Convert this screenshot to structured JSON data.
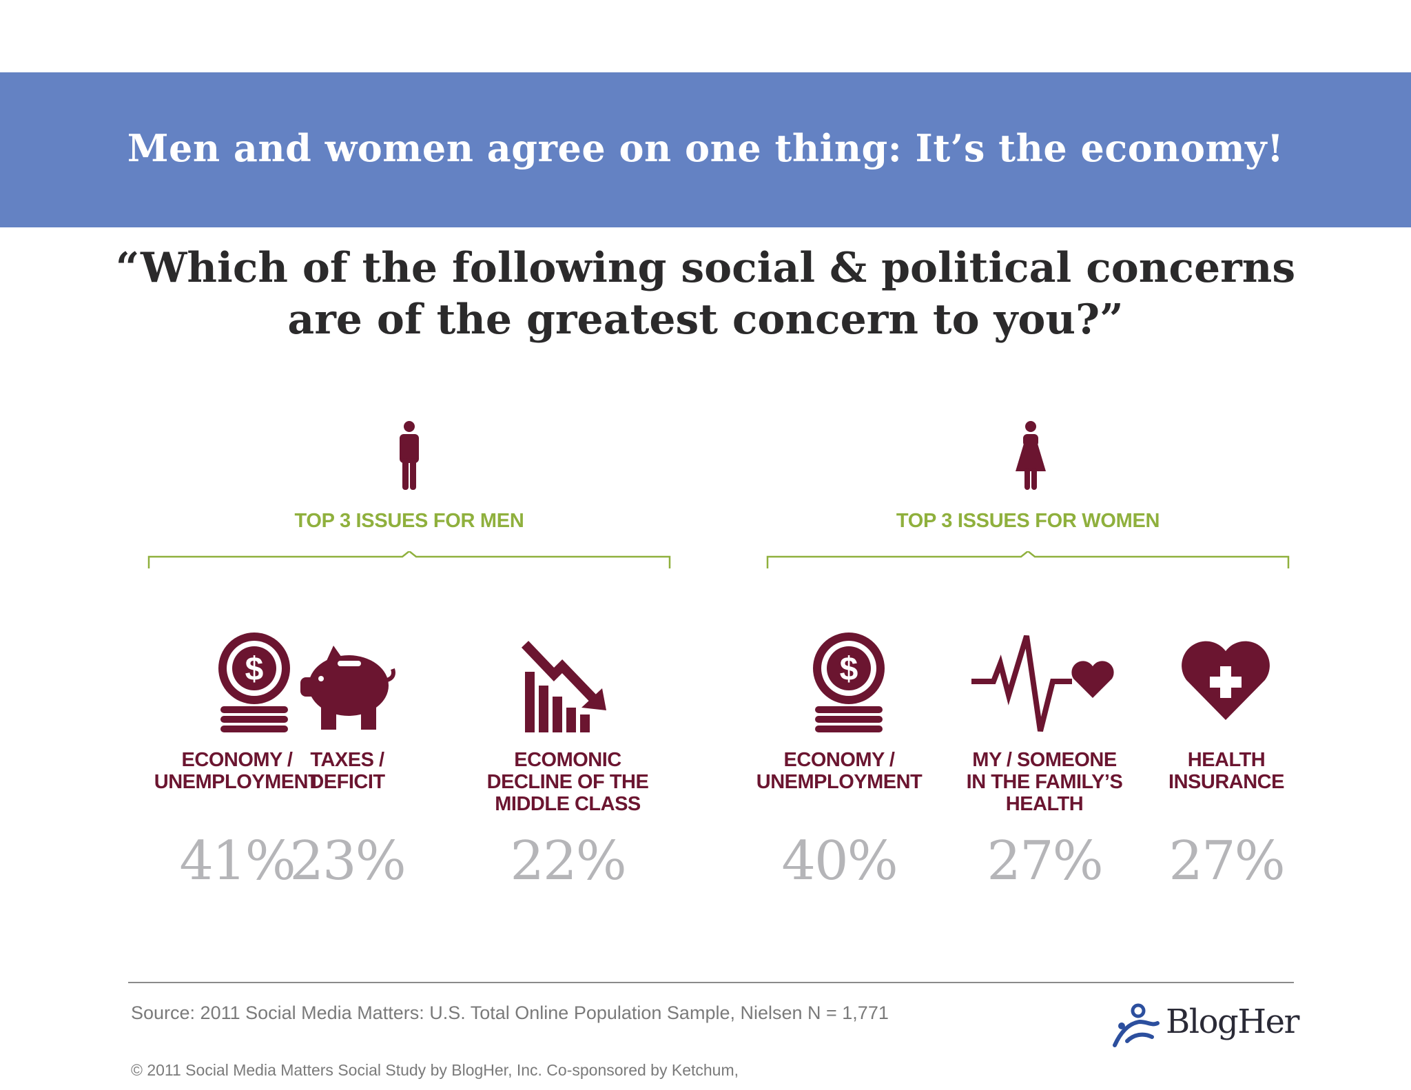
{
  "banner": {
    "title": "Men and women agree on one thing: It’s the economy!"
  },
  "question": {
    "line1": "“Which of the following social & political concerns",
    "line2": "are of the greatest concern to you?”"
  },
  "men": {
    "label": "TOP 3 ISSUES FOR MEN",
    "issues": [
      {
        "label": "ECONOMY / UNEMPLOYMENT",
        "line1": "ECONOMY /",
        "line2": "UNEMPLOYMENT",
        "line3": "",
        "percent": "41%",
        "icon": "coins-dollar-icon"
      },
      {
        "label": "TAXES / DEFICIT",
        "line1": "TAXES /",
        "line2": "DEFICIT",
        "line3": "",
        "percent": "23%",
        "icon": "piggy-bank-icon"
      },
      {
        "label": "ECOMONIC DECLINE OF THE MIDDLE CLASS",
        "line1": "ECOMONIC",
        "line2": "DECLINE OF THE",
        "line3": "MIDDLE CLASS",
        "percent": "22%",
        "icon": "declining-chart-icon"
      }
    ]
  },
  "women": {
    "label": "TOP 3 ISSUES FOR WOMEN",
    "issues": [
      {
        "label": "ECONOMY / UNEMPLOYMENT",
        "line1": "ECONOMY /",
        "line2": "UNEMPLOYMENT",
        "line3": "",
        "percent": "40%",
        "icon": "coins-dollar-icon"
      },
      {
        "label": "MY / SOMEONE IN THE FAMILY’S HEALTH",
        "line1": "MY / SOMEONE",
        "line2": "IN THE FAMILY’S",
        "line3": "HEALTH",
        "percent": "27%",
        "icon": "heartbeat-icon"
      },
      {
        "label": "HEALTH INSURANCE",
        "line1": "HEALTH",
        "line2": "INSURANCE",
        "line3": "",
        "percent": "27%",
        "icon": "heart-plus-icon"
      }
    ]
  },
  "footer": {
    "source": "Source: 2011 Social Media Matters: U.S. Total Online Population Sample, Nielsen N = 1,771",
    "copyright": "© 2011 Social Media Matters Social Study by BlogHer, Inc. Co-sponsored by Ketchum,",
    "logo_text": "BlogHer"
  },
  "colors": {
    "banner": "#6482c3",
    "accent_green": "#8fb03d",
    "maroon": "#6b1530",
    "percent_gray": "#b5b5b8"
  }
}
